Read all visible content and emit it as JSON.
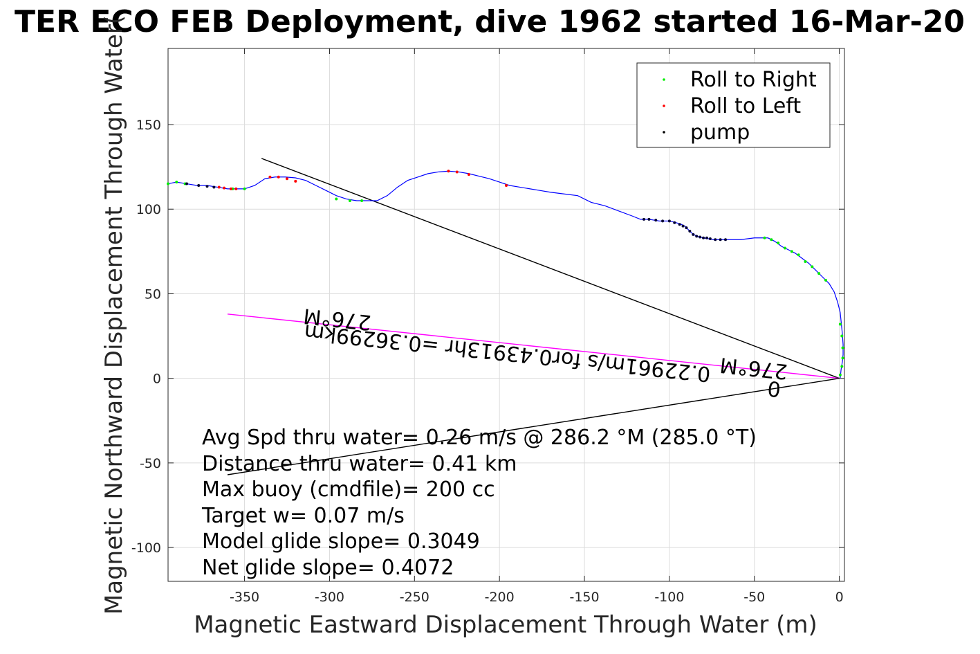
{
  "chart_data": {
    "type": "line",
    "title": "TER ECO FEB Deployment, dive 1962 started 16-Mar-20",
    "xlabel": "Magnetic Eastward Displacement Through Water (m)",
    "ylabel": "Magnetic Northward Displacement Through Water(",
    "xlim": [
      -395,
      3
    ],
    "ylim": [
      -120,
      195
    ],
    "xticks": [
      -350,
      -300,
      -250,
      -200,
      -150,
      -100,
      -50,
      0
    ],
    "yticks": [
      -100,
      -50,
      0,
      50,
      100,
      150
    ],
    "grid": true,
    "legend_position": "top-right",
    "legend": [
      {
        "label": "Roll to Right",
        "color": "#00ee00"
      },
      {
        "label": "Roll to Left",
        "color": "#ff0000"
      },
      {
        "label": "pump",
        "color": "#000000"
      }
    ],
    "track": {
      "color": "#0000ff",
      "x": [
        0.5,
        1,
        1.8,
        2.2,
        2.2,
        1.8,
        1.2,
        0.5,
        -1,
        -3,
        -6,
        -10,
        -14,
        -18,
        -22,
        -26,
        -30,
        -34,
        -38,
        -42,
        -50,
        -58,
        -66,
        -74,
        -80,
        -84,
        -87,
        -89,
        -91,
        -93,
        -96,
        -100,
        -106,
        -112,
        -117,
        -122,
        -130,
        -138,
        -146,
        -154,
        -162,
        -170,
        -176,
        -182,
        -188,
        -194,
        -200,
        -206,
        -212,
        -218,
        -224,
        -230,
        -236,
        -242,
        -248,
        -254,
        -260,
        -266,
        -272,
        -278,
        -284,
        -290,
        -296,
        -302,
        -308,
        -314,
        -320,
        -326,
        -332,
        -338,
        -344,
        -350,
        -356,
        -360,
        -366,
        -372,
        -378,
        -384,
        -390,
        -395
      ],
      "y": [
        0,
        5,
        10,
        14,
        20,
        26,
        32,
        39,
        45,
        51,
        56,
        60,
        64,
        68,
        71,
        74,
        76,
        78,
        81,
        83,
        83,
        82,
        82,
        82,
        83,
        84,
        86,
        88,
        90,
        91,
        92,
        93,
        93,
        94,
        94,
        96,
        99,
        102,
        104,
        108,
        109,
        110,
        111,
        112,
        113,
        114,
        116,
        118,
        119.5,
        121,
        122,
        122.5,
        122,
        121,
        119,
        117,
        113,
        108,
        105,
        105,
        105,
        106,
        108,
        111,
        114,
        117,
        118.5,
        119,
        119,
        118,
        114,
        112,
        112,
        112,
        113,
        114,
        114,
        115,
        116,
        115
      ]
    },
    "markers": {
      "roll_right": {
        "x": [
          0.5,
          1.5,
          2,
          2,
          1.5,
          0.5,
          -8,
          -12,
          -16,
          -20,
          -24,
          -28,
          -32,
          -36,
          -40,
          -44,
          -296,
          -288,
          -281,
          -350,
          -357,
          -385,
          -390,
          -395
        ],
        "y": [
          2,
          7,
          12,
          18,
          25,
          32,
          58,
          62,
          66,
          69,
          73,
          75,
          77,
          80,
          82,
          83,
          106,
          105,
          105,
          112,
          112,
          115,
          116,
          115
        ]
      },
      "roll_left": {
        "x": [
          -230,
          -225,
          -218,
          -196,
          -335,
          -330,
          -325,
          -320,
          -365,
          -362,
          -358,
          -355
        ],
        "y": [
          122.5,
          122,
          120.5,
          114,
          119,
          119,
          118,
          116.5,
          113,
          112.5,
          112,
          112
        ]
      },
      "pump": {
        "x": [
          -67,
          -70,
          -73,
          -76,
          -78,
          -80,
          -82,
          -84,
          -86,
          -88,
          -90,
          -92,
          -94,
          -97,
          -100,
          -104,
          -108,
          -112,
          -115,
          -368,
          -372,
          -377,
          -384
        ],
        "y": [
          82,
          82,
          82,
          82.5,
          83,
          83,
          83.5,
          84,
          85,
          87,
          89,
          90,
          91,
          92,
          93,
          93,
          93.5,
          94,
          94,
          113,
          113.5,
          114,
          115
        ]
      }
    },
    "lines": [
      {
        "from": [
          0,
          0
        ],
        "to": [
          -340,
          130
        ],
        "color": "#000000"
      },
      {
        "from": [
          0,
          0
        ],
        "to": [
          -360,
          38
        ],
        "color": "#ff00ff"
      },
      {
        "from": [
          0,
          0
        ],
        "to": [
          -360,
          -57
        ],
        "color": "#000000"
      }
    ],
    "rotated_labels": [
      {
        "text": "276°M",
        "x": -295,
        "y": 39
      },
      {
        "text": "0.22961m/s for0.43913hr =0.36299km",
        "x": -195,
        "y": 19
      },
      {
        "text": "276°M",
        "x": -50,
        "y": 10
      },
      {
        "text": "0",
        "x": -38,
        "y": -2
      }
    ],
    "annotations": [
      "Avg Spd thru water=  0.26 m/s @ 286.2 °M (285.0 °T)",
      "Distance thru water=  0.41 km",
      "Max buoy (cmdfile)= 200 cc",
      "Target w= 0.07 m/s",
      "Model glide slope= 0.3049",
      "Net glide slope= 0.4072"
    ]
  }
}
